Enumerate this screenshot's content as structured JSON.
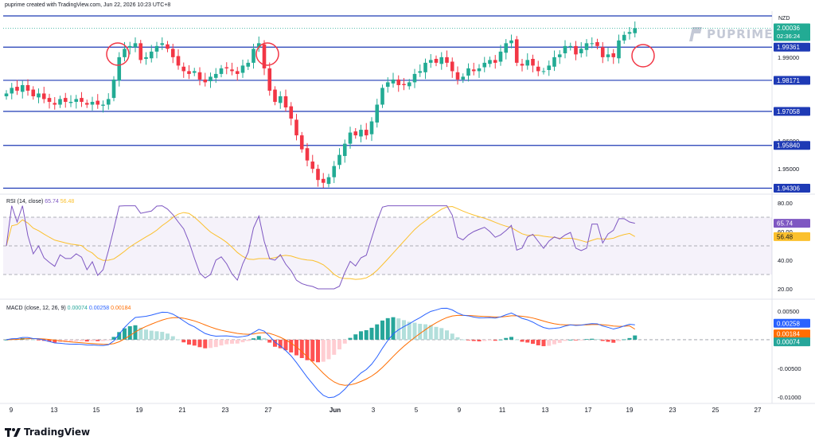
{
  "header": {
    "created_by": "puprime created with TradingView.com, Jun 22, 2026 10:23 UTC+8"
  },
  "brand": {
    "name": "PUPRIME"
  },
  "footer": {
    "logo_text": "TradingView"
  },
  "price_axis": {
    "currency": "NZD",
    "ticks": [
      "1.99000",
      "1.96000",
      "1.95000"
    ]
  },
  "price_badges": [
    {
      "label": "2.00036",
      "sub": "02:36:24",
      "color": "#22ab94"
    },
    {
      "label": "1.99361",
      "color": "#1e3ab5"
    },
    {
      "label": "1.98171",
      "color": "#1e3ab5"
    },
    {
      "label": "1.97058",
      "color": "#1e3ab5"
    },
    {
      "label": "1.95840",
      "color": "#1e3ab5"
    },
    {
      "label": "1.94306",
      "color": "#1e3ab5"
    }
  ],
  "x_axis": {
    "ticks": [
      "9",
      "13",
      "15",
      "19",
      "21",
      "23",
      "27",
      "Jun",
      "3",
      "5",
      "9",
      "11",
      "13",
      "17",
      "19",
      "23",
      "25",
      "27"
    ]
  },
  "rsi": {
    "legend": "RSI (14, close)",
    "value": "65.74",
    "ma_value": "56.48",
    "axis_ticks": [
      "80.00",
      "60.00",
      "40.00",
      "20.00"
    ],
    "badges": [
      {
        "label": "65.74",
        "color": "#7e57c2"
      },
      {
        "label": "56.48",
        "color": "#fbc02d"
      }
    ]
  },
  "macd": {
    "legend": "MACD (close, 12, 26, 9)",
    "v1": "0.00074",
    "v2": "0.00258",
    "v3": "0.00184",
    "axis_ticks": [
      "0.00500",
      "-0.00500",
      "-0.01000"
    ],
    "badges": [
      {
        "label": "0.00258",
        "color": "#2962ff"
      },
      {
        "label": "0.00184",
        "color": "#ff6d00"
      },
      {
        "label": "0.00074",
        "color": "#26a69a"
      }
    ]
  },
  "colors": {
    "up": "#22ab94",
    "down": "#f23645",
    "level_line": "#1e3ab5",
    "rsi": "#7e57c2",
    "rsi_ma": "#fbc02d",
    "macd": "#2962ff",
    "signal": "#ff6d00"
  },
  "chart_data": [
    {
      "type": "candlestick",
      "title": "",
      "currency": "NZD",
      "x_ticks": [
        "9",
        "13",
        "15",
        "19",
        "21",
        "23",
        "27",
        "Jun",
        "3",
        "5",
        "9",
        "11",
        "13",
        "17",
        "19",
        "23",
        "25",
        "27"
      ],
      "horizontal_levels": [
        1.99361,
        1.98171,
        1.97058,
        1.9584,
        1.94306
      ],
      "last_price": 2.00036,
      "close": [
        1.977,
        1.979,
        1.978,
        1.98,
        1.978,
        1.976,
        1.977,
        1.975,
        1.974,
        1.973,
        1.975,
        1.974,
        1.974,
        1.975,
        1.974,
        1.973,
        1.974,
        1.973,
        1.973,
        1.975,
        1.982,
        1.99,
        1.993,
        1.994,
        1.995,
        1.989,
        1.99,
        1.992,
        1.994,
        1.995,
        1.993,
        1.99,
        1.987,
        1.985,
        1.984,
        1.985,
        1.982,
        1.981,
        1.983,
        1.984,
        1.986,
        1.986,
        1.985,
        1.984,
        1.987,
        1.988,
        1.993,
        1.995,
        1.986,
        1.978,
        1.974,
        1.976,
        1.972,
        1.968,
        1.962,
        1.957,
        1.953,
        1.95,
        1.946,
        1.945,
        1.947,
        1.951,
        1.955,
        1.959,
        1.963,
        1.962,
        1.964,
        1.962,
        1.967,
        1.973,
        1.979,
        1.981,
        1.982,
        1.98,
        1.98,
        1.981,
        1.984,
        1.985,
        1.988,
        1.989,
        1.988,
        1.99,
        1.988,
        1.985,
        1.982,
        1.983,
        1.986,
        1.985,
        1.986,
        1.988,
        1.989,
        1.988,
        1.992,
        1.995,
        1.996,
        1.988,
        1.987,
        1.989,
        1.987,
        1.985,
        1.985,
        1.987,
        1.99,
        1.991,
        1.994,
        1.994,
        1.991,
        1.993,
        1.995,
        1.995,
        1.994,
        1.99,
        1.991,
        1.99,
        1.996,
        1.998,
        1.999,
        2.0004
      ],
      "rsi": {
        "value": 65.74,
        "ma": 56.48,
        "levels": [
          70,
          50,
          30
        ],
        "range": [
          20,
          80
        ]
      },
      "macd": {
        "macd": 0.00258,
        "signal": 0.00184,
        "histogram": 0.00074,
        "range": [
          -0.01,
          0.005
        ]
      }
    }
  ]
}
